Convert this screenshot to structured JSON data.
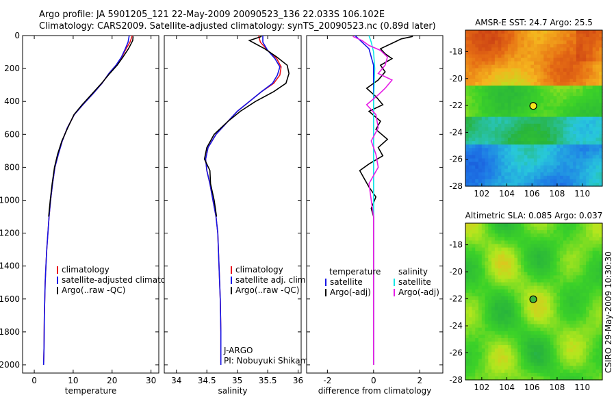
{
  "header": {
    "line1": "Argo profile: JA 5901205_121 22-May-2009 20090523_136 22.033S 106.102E",
    "line2": "Climatology: CARS2009. Satellite-adjusted climatology: synTS_20090523.nc (0.89d later)"
  },
  "side_label": "CSIRO 29-May-2009 10:30:30",
  "colors": {
    "red": "#e8141e",
    "blue": "#1414e6",
    "black": "#000000",
    "magenta": "#e61ee6",
    "cyan": "#14e6e6"
  },
  "chart_data": [
    {
      "id": "temperature",
      "type": "line",
      "xlabel": "temperature",
      "ylabel": "",
      "xlim": [
        -3,
        32
      ],
      "ylim": [
        2050,
        0
      ],
      "xticks": [
        0,
        10,
        20,
        30
      ],
      "yticks": [
        0,
        200,
        400,
        600,
        800,
        1000,
        1200,
        1400,
        1600,
        1800,
        2000
      ],
      "legend": [
        "climatology",
        "satellite-adjusted climatology",
        "Argo(..raw -QC)"
      ],
      "series": [
        {
          "name": "climatology",
          "color": "red",
          "x": [
            25.2,
            24.6,
            23.6,
            22.5,
            21,
            19.2,
            17.4,
            15.2,
            12.5,
            10.3,
            8.5,
            7.2,
            6.2,
            5.3,
            4.7,
            4.2,
            3.8,
            3.5,
            3.2,
            3.0,
            2.8,
            2.6,
            2.5,
            2.4
          ],
          "y": [
            0,
            40,
            80,
            130,
            180,
            230,
            290,
            350,
            420,
            480,
            560,
            640,
            720,
            800,
            900,
            1000,
            1100,
            1200,
            1300,
            1400,
            1500,
            1700,
            1900,
            2000
          ]
        },
        {
          "name": "satellite-adjusted climatology",
          "color": "blue",
          "x": [
            24.4,
            24.1,
            23.4,
            22.4,
            21,
            19.2,
            17.4,
            15.2,
            12.5,
            10.3,
            8.5,
            7.2,
            6.2,
            5.3,
            4.7,
            4.2,
            3.8,
            3.5,
            3.2,
            3.0,
            2.8,
            2.6,
            2.5,
            2.4
          ],
          "y": [
            0,
            40,
            80,
            130,
            180,
            230,
            290,
            350,
            420,
            480,
            560,
            640,
            720,
            800,
            900,
            1000,
            1100,
            1200,
            1300,
            1400,
            1500,
            1700,
            1900,
            2000
          ]
        },
        {
          "name": "Argo(..raw -QC)",
          "color": "black",
          "x": [
            25.4,
            25.3,
            24.2,
            22.8,
            21.3,
            19.4,
            17.3,
            15.0,
            12.3,
            10.2,
            8.6,
            7.1,
            6.0,
            5.2,
            4.6,
            4.1,
            3.7
          ],
          "y": [
            5,
            30,
            80,
            130,
            180,
            230,
            290,
            350,
            420,
            480,
            560,
            640,
            720,
            800,
            900,
            1000,
            1100
          ]
        }
      ]
    },
    {
      "id": "salinity",
      "type": "line",
      "xlabel": "salinity",
      "ylabel": "",
      "xlim": [
        33.8,
        36.05
      ],
      "ylim": [
        2050,
        0
      ],
      "xticks": [
        34,
        34.5,
        35,
        35.5,
        36
      ],
      "yticks": [],
      "legend": [
        "climatology",
        "satellite adj. clim.",
        "Argo(..raw -QC)"
      ],
      "annotation_1": "J-ARGO",
      "annotation_2": "PI: Nobuyuki Shikama",
      "series": [
        {
          "name": "climatology",
          "color": "red",
          "x": [
            35.35,
            35.38,
            35.5,
            35.65,
            35.72,
            35.7,
            35.6,
            35.4,
            35.2,
            35.0,
            34.85,
            34.65,
            34.52,
            34.48,
            34.5,
            34.55,
            34.6,
            34.65,
            34.68,
            34.7,
            34.72,
            34.73,
            34.73
          ],
          "y": [
            0,
            40,
            90,
            140,
            190,
            240,
            290,
            340,
            400,
            460,
            520,
            600,
            680,
            750,
            820,
            900,
            1000,
            1100,
            1200,
            1400,
            1600,
            1800,
            2000
          ]
        },
        {
          "name": "satellite adj. clim.",
          "color": "blue",
          "x": [
            35.42,
            35.42,
            35.5,
            35.62,
            35.7,
            35.66,
            35.58,
            35.4,
            35.2,
            35.0,
            34.85,
            34.65,
            34.52,
            34.48,
            34.5,
            34.55,
            34.6,
            34.65,
            34.68,
            34.7,
            34.72,
            34.73,
            34.73
          ],
          "y": [
            0,
            40,
            90,
            140,
            190,
            240,
            290,
            340,
            400,
            460,
            520,
            600,
            680,
            750,
            820,
            900,
            1000,
            1100,
            1200,
            1400,
            1600,
            1800,
            2000
          ]
        },
        {
          "name": "Argo(..raw -QC)",
          "color": "black",
          "x": [
            35.4,
            35.2,
            35.45,
            35.65,
            35.82,
            35.85,
            35.8,
            35.6,
            35.3,
            35.05,
            34.85,
            34.62,
            34.5,
            34.46,
            34.55,
            34.56,
            34.62,
            34.66
          ],
          "y": [
            5,
            30,
            80,
            130,
            180,
            230,
            290,
            340,
            400,
            460,
            520,
            600,
            680,
            750,
            820,
            900,
            1000,
            1100
          ]
        }
      ]
    },
    {
      "id": "difference",
      "type": "line",
      "xlabel": "difference from climatology",
      "ylabel": "",
      "xlim": [
        -2.9,
        3.0
      ],
      "ylim": [
        2050,
        0
      ],
      "xticks": [
        -2,
        0,
        2
      ],
      "yticks": [],
      "legend_left_title": "temperature",
      "legend_right_title": "salinity",
      "legend": [
        "satellite",
        "Argo(-adj)",
        "satellite",
        "Argo(-adj)"
      ],
      "series": [
        {
          "name": "temperature satellite",
          "color": "blue",
          "x": [
            -0.8,
            -0.5,
            -0.2,
            -0.1,
            0,
            0,
            0,
            0,
            0,
            0
          ],
          "y": [
            0,
            40,
            80,
            130,
            180,
            400,
            800,
            1200,
            1600,
            2000
          ]
        },
        {
          "name": "temperature Argo(-adj)",
          "color": "black",
          "x": [
            1.7,
            1.2,
            0.9,
            0.6,
            0.3,
            0.5,
            0.8,
            0.3,
            0.5,
            0.2,
            -0.3,
            0.1,
            0.4,
            -0.2,
            0.3,
            0.1,
            0.6,
            0.2,
            0.4,
            -0.2,
            -0.6,
            -0.4,
            -0.2,
            0.1,
            -0.1,
            0,
            0
          ],
          "y": [
            5,
            20,
            40,
            60,
            80,
            110,
            140,
            180,
            220,
            270,
            320,
            370,
            420,
            460,
            520,
            570,
            630,
            680,
            730,
            780,
            820,
            870,
            920,
            980,
            1050,
            1100,
            2000
          ]
        },
        {
          "name": "salinity satellite",
          "color": "cyan",
          "x": [
            -0.2,
            -0.1,
            0,
            0.05,
            0,
            0,
            0,
            0,
            0
          ],
          "y": [
            0,
            40,
            100,
            200,
            400,
            800,
            1200,
            1600,
            2000
          ]
        },
        {
          "name": "salinity Argo(-adj)",
          "color": "magenta",
          "x": [
            -0.9,
            -0.5,
            -0.2,
            0.3,
            0.6,
            0.5,
            0.2,
            0.8,
            0.5,
            0.2,
            -0.3,
            0.1,
            0.2,
            -0.1,
            0.1,
            0.2,
            0.0,
            -0.2,
            -0.1,
            0,
            0
          ],
          "y": [
            5,
            30,
            60,
            90,
            130,
            180,
            230,
            270,
            320,
            360,
            420,
            480,
            560,
            640,
            720,
            800,
            850,
            900,
            1000,
            1100,
            2000
          ]
        }
      ]
    },
    {
      "id": "sst_map",
      "type": "heatmap",
      "title": "AMSR-E SST: 24.7 Argo: 25.5",
      "xlim": [
        100.7,
        111.6
      ],
      "ylim": [
        -28,
        -16.4
      ],
      "xticks": [
        102,
        104,
        106,
        108,
        110
      ],
      "yticks": [
        -18,
        -20,
        -22,
        -24,
        -26,
        -28
      ],
      "marker": {
        "lon": 106.102,
        "lat": -22.033
      }
    },
    {
      "id": "sla_map",
      "type": "heatmap",
      "title": "Altimetric SLA: 0.085 Argo: 0.037",
      "xlim": [
        100.7,
        111.6
      ],
      "ylim": [
        -28,
        -16.4
      ],
      "xticks": [
        102,
        104,
        106,
        108,
        110
      ],
      "yticks": [
        -18,
        -20,
        -22,
        -24,
        -26,
        -28
      ],
      "marker": {
        "lon": 106.102,
        "lat": -22.033
      }
    }
  ]
}
